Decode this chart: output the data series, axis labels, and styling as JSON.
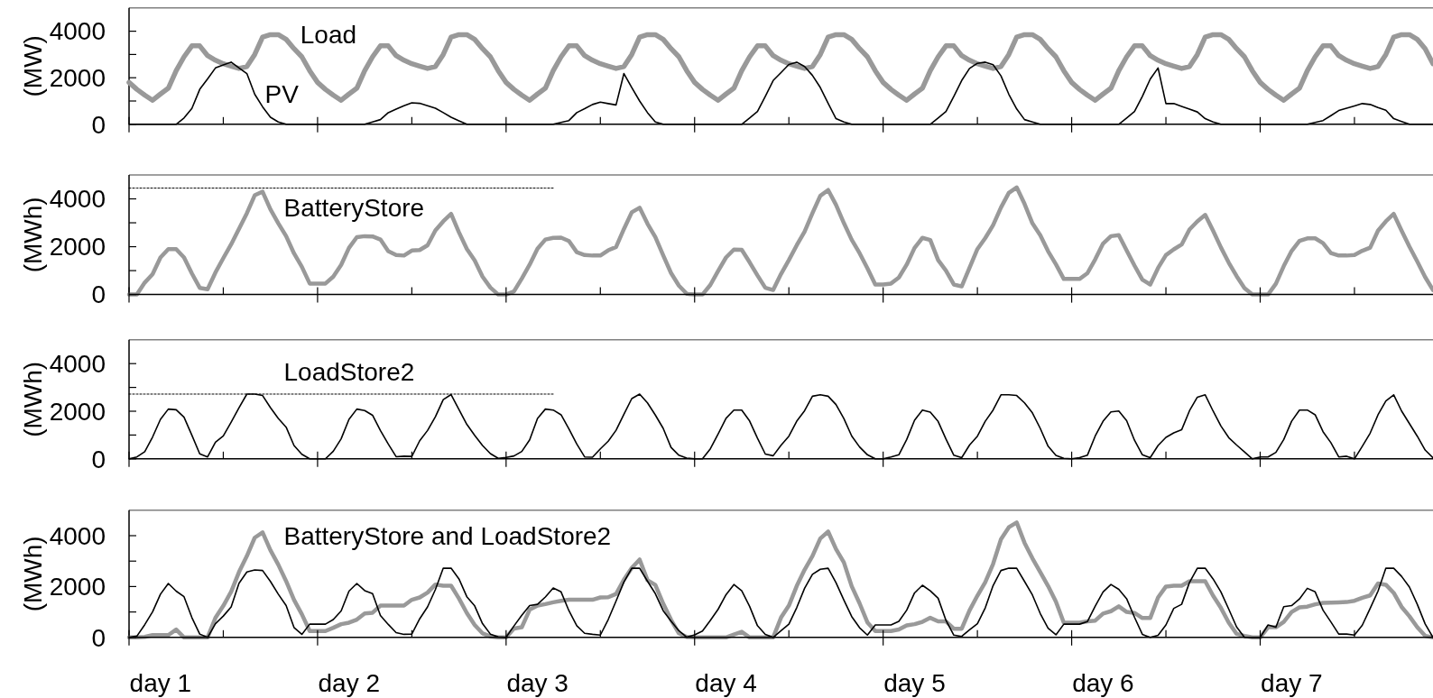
{
  "chart_data": [
    {
      "type": "line",
      "ylabel": "(MW)",
      "ylim": [
        0,
        5000
      ],
      "yticks": [
        0,
        2000,
        4000
      ],
      "categories": [
        null,
        null,
        null,
        null,
        null,
        null,
        null,
        null,
        null,
        null,
        null,
        null,
        null,
        null,
        null,
        null,
        null,
        null,
        null,
        null,
        null,
        null,
        null,
        null,
        null,
        null,
        null,
        null,
        null,
        null,
        null,
        null,
        null,
        null,
        null,
        null,
        null,
        null,
        null,
        null,
        null,
        null,
        null,
        null,
        null,
        null,
        null,
        null,
        null,
        null,
        null,
        null,
        null,
        null,
        null,
        null,
        null,
        null,
        null,
        null,
        null,
        null,
        null,
        null,
        null,
        null,
        null,
        null,
        null,
        null,
        null,
        null,
        null,
        null,
        null,
        null,
        null,
        null,
        null,
        null,
        null,
        null,
        null,
        null,
        null,
        null,
        null,
        null,
        null,
        null,
        null,
        null,
        null,
        null,
        null,
        null,
        null,
        null,
        null,
        null,
        null,
        null,
        null,
        null,
        null,
        null,
        null,
        null,
        null,
        null,
        null,
        null,
        null,
        null,
        null,
        null,
        null,
        null,
        null,
        null,
        null,
        null,
        null,
        null,
        null,
        null,
        null,
        null,
        null,
        null,
        null,
        null,
        null,
        null,
        null,
        null,
        null,
        null,
        null,
        null,
        null,
        null,
        null,
        null,
        null,
        null,
        null,
        null,
        null,
        null,
        null,
        null,
        null,
        null,
        null,
        null,
        null,
        null,
        null,
        null,
        null,
        null,
        null,
        null,
        null,
        null,
        null
      ],
      "series": [
        {
          "name": "Load",
          "color": "#999999",
          "values": [
            1800,
            1500,
            1250,
            1030,
            1300,
            1550,
            2300,
            2900,
            3370,
            3370,
            2950,
            2750,
            2600,
            2500,
            2400,
            2480,
            3000,
            3750,
            3850,
            3850,
            3650,
            3250,
            2900,
            2300,
            1800,
            1500,
            1250,
            1030,
            1300,
            1550,
            2300,
            2900,
            3370,
            3370,
            2950,
            2750,
            2600,
            2500,
            2400,
            2480,
            3000,
            3750,
            3850,
            3850,
            3650,
            3250,
            2900,
            2300,
            1800,
            1500,
            1250,
            1030,
            1300,
            1550,
            2300,
            2900,
            3370,
            3370,
            2950,
            2750,
            2600,
            2500,
            2400,
            2480,
            3000,
            3750,
            3850,
            3850,
            3650,
            3250,
            2900,
            2300,
            1800,
            1500,
            1250,
            1030,
            1300,
            1550,
            2300,
            2900,
            3370,
            3370,
            2950,
            2750,
            2600,
            2500,
            2400,
            2480,
            3000,
            3750,
            3850,
            3850,
            3650,
            3250,
            2900,
            2300,
            1800,
            1500,
            1250,
            1030,
            1300,
            1550,
            2300,
            2900,
            3370,
            3370,
            2950,
            2750,
            2600,
            2500,
            2400,
            2480,
            3000,
            3750,
            3850,
            3850,
            3650,
            3250,
            2900,
            2300,
            1800,
            1500,
            1250,
            1030,
            1300,
            1550,
            2300,
            2900,
            3370,
            3370,
            2950,
            2750,
            2600,
            2500,
            2400,
            2480,
            3000,
            3750,
            3850,
            3850,
            3650,
            3250,
            2900,
            2300,
            1800,
            1500,
            1250,
            1030,
            1300,
            1550,
            2300,
            2900,
            3370,
            3370,
            2950,
            2750,
            2600,
            2500,
            2400,
            2480,
            3000,
            3750,
            3850,
            3850,
            3650,
            3250,
            2600
          ]
        },
        {
          "name": "PV",
          "color": "#000000",
          "values": [
            0,
            0,
            0,
            0,
            0,
            0,
            0,
            270,
            680,
            1500,
            1950,
            2420,
            2550,
            2670,
            2420,
            2180,
            1290,
            750,
            300,
            100,
            0,
            0,
            0,
            0,
            0,
            0,
            0,
            0,
            0,
            0,
            0,
            100,
            200,
            500,
            650,
            800,
            920,
            900,
            800,
            690,
            500,
            300,
            150,
            0,
            0,
            0,
            0,
            0,
            0,
            0,
            0,
            0,
            0,
            0,
            0,
            80,
            160,
            500,
            670,
            850,
            950,
            890,
            830,
            2180,
            1580,
            1000,
            500,
            100,
            0,
            0,
            0,
            0,
            0,
            0,
            0,
            0,
            0,
            0,
            0,
            270,
            550,
            1200,
            1880,
            2220,
            2570,
            2670,
            2480,
            2100,
            1580,
            900,
            240,
            100,
            0,
            0,
            0,
            0,
            0,
            0,
            0,
            0,
            0,
            0,
            0,
            270,
            550,
            1200,
            1880,
            2400,
            2620,
            2670,
            2560,
            2080,
            1290,
            660,
            200,
            100,
            0,
            0,
            0,
            0,
            0,
            0,
            0,
            0,
            0,
            0,
            0,
            270,
            550,
            1200,
            1940,
            2420,
            890,
            890,
            770,
            650,
            530,
            240,
            100,
            0,
            0,
            0,
            0,
            0,
            0,
            0,
            0,
            0,
            0,
            0,
            0,
            80,
            160,
            370,
            590,
            690,
            790,
            890,
            850,
            720,
            600,
            240,
            120,
            0,
            0,
            0,
            0
          ]
        }
      ]
    },
    {
      "type": "line",
      "ylabel": "(MWh)",
      "ylim": [
        0,
        5000
      ],
      "yticks": [
        0,
        2000,
        4000
      ],
      "categories": [
        null,
        null,
        null,
        null,
        null,
        null,
        null,
        null,
        null,
        null,
        null,
        null,
        null,
        null,
        null,
        null,
        null,
        null,
        null,
        null,
        null,
        null,
        null,
        null,
        null,
        null,
        null,
        null,
        null,
        null,
        null,
        null,
        null,
        null,
        null,
        null,
        null,
        null,
        null,
        null,
        null,
        null,
        null,
        null,
        null,
        null,
        null,
        null,
        null,
        null,
        null,
        null,
        null,
        null,
        null,
        null,
        null,
        null,
        null,
        null,
        null,
        null,
        null,
        null,
        null,
        null,
        null,
        null,
        null,
        null,
        null,
        null,
        null,
        null,
        null,
        null,
        null,
        null,
        null,
        null,
        null,
        null,
        null,
        null,
        null,
        null,
        null,
        null,
        null,
        null,
        null,
        null,
        null,
        null,
        null,
        null,
        null,
        null,
        null,
        null,
        null,
        null,
        null,
        null,
        null,
        null,
        null,
        null,
        null,
        null,
        null,
        null,
        null,
        null,
        null,
        null,
        null,
        null,
        null,
        null,
        null,
        null,
        null,
        null,
        null,
        null,
        null,
        null,
        null,
        null,
        null,
        null,
        null,
        null,
        null,
        null,
        null,
        null,
        null,
        null,
        null,
        null,
        null,
        null,
        null,
        null,
        null,
        null,
        null,
        null,
        null,
        null,
        null,
        null,
        null,
        null,
        null,
        null,
        null,
        null,
        null,
        null,
        null,
        null,
        null,
        null,
        null
      ],
      "series": [
        {
          "color": "#000000",
          "line_style": "dotted",
          "values": [
            4450,
            4450,
            4450,
            4450,
            4450,
            4450,
            4450,
            4450,
            4450,
            4450,
            4450,
            4450,
            4450,
            4450,
            4450,
            4450,
            4450,
            4450,
            4450,
            4450,
            4450,
            4450,
            4450,
            4450,
            4450,
            4450,
            4450,
            4450,
            4450,
            4450,
            4450,
            4450,
            4450,
            4450,
            4450,
            4450,
            4450,
            4450,
            4450,
            4450,
            4450,
            4450,
            4450,
            4450,
            4450,
            4450,
            4450,
            4450,
            4450,
            4450,
            4450,
            4450,
            4450,
            4450,
            4450,
            null,
            null,
            null,
            null,
            null,
            null,
            null,
            null,
            null,
            null,
            null,
            null,
            null,
            null,
            null,
            null,
            null,
            null,
            null,
            null,
            null,
            null,
            null,
            null,
            null,
            null,
            null,
            null,
            null,
            null,
            null,
            null,
            null,
            null,
            null,
            null,
            null,
            null,
            null,
            null,
            null,
            null,
            null,
            null,
            null,
            null,
            null,
            null,
            null,
            null,
            null,
            null,
            null,
            null,
            null,
            null,
            null,
            null,
            null,
            null,
            null,
            null,
            null,
            null,
            null,
            null,
            null,
            null,
            null,
            null,
            null,
            null,
            null,
            null,
            null,
            null,
            null,
            null,
            null,
            null,
            null,
            null,
            null,
            null,
            null,
            null,
            null,
            null,
            null,
            null,
            null,
            null,
            null,
            null,
            null,
            null,
            null,
            null,
            null,
            null,
            null,
            null,
            null,
            null,
            null,
            null,
            null,
            null,
            null,
            null,
            null,
            null
          ]
        },
        {
          "name": "BatteryStore",
          "color": "#999999",
          "values": [
            0,
            0,
            500,
            850,
            1550,
            1900,
            1900,
            1550,
            880,
            280,
            220,
            920,
            1520,
            2100,
            2750,
            3400,
            4150,
            4300,
            3560,
            2980,
            2440,
            1720,
            1160,
            460,
            460,
            460,
            750,
            1240,
            1950,
            2400,
            2440,
            2430,
            2300,
            1810,
            1650,
            1630,
            1840,
            1860,
            2060,
            2680,
            3060,
            3370,
            2600,
            1910,
            1430,
            750,
            290,
            0,
            0,
            130,
            670,
            1250,
            1920,
            2300,
            2370,
            2380,
            2240,
            1770,
            1650,
            1630,
            1630,
            1850,
            1990,
            2740,
            3440,
            3630,
            2960,
            2400,
            1640,
            900,
            370,
            30,
            0,
            0,
            400,
            990,
            1550,
            1880,
            1870,
            1350,
            800,
            280,
            190,
            860,
            1440,
            2060,
            2630,
            3400,
            4130,
            4370,
            3750,
            2990,
            2290,
            1730,
            1100,
            420,
            420,
            460,
            710,
            1250,
            1950,
            2370,
            2280,
            1440,
            1000,
            420,
            340,
            1120,
            1900,
            2360,
            2900,
            3640,
            4250,
            4480,
            3790,
            2980,
            2480,
            1810,
            1260,
            650,
            650,
            650,
            890,
            1470,
            2130,
            2440,
            2480,
            1840,
            1210,
            620,
            420,
            1110,
            1650,
            1890,
            2090,
            2720,
            3060,
            3330,
            2670,
            1970,
            1330,
            770,
            270,
            0,
            0,
            0,
            450,
            1190,
            1820,
            2240,
            2350,
            2350,
            2150,
            1730,
            1630,
            1630,
            1650,
            1830,
            1960,
            2670,
            3060,
            3370,
            2670,
            2000,
            1380,
            730,
            190
          ]
        }
      ]
    },
    {
      "type": "line",
      "ylabel": "(MWh)",
      "ylim": [
        0,
        5000
      ],
      "yticks": [
        0,
        2000,
        4000
      ],
      "categories": [
        null,
        null,
        null,
        null,
        null,
        null,
        null,
        null,
        null,
        null,
        null,
        null,
        null,
        null,
        null,
        null,
        null,
        null,
        null,
        null,
        null,
        null,
        null,
        null,
        null,
        null,
        null,
        null,
        null,
        null,
        null,
        null,
        null,
        null,
        null,
        null,
        null,
        null,
        null,
        null,
        null,
        null,
        null,
        null,
        null,
        null,
        null,
        null,
        null,
        null,
        null,
        null,
        null,
        null,
        null,
        null,
        null,
        null,
        null,
        null,
        null,
        null,
        null,
        null,
        null,
        null,
        null,
        null,
        null,
        null,
        null,
        null,
        null,
        null,
        null,
        null,
        null,
        null,
        null,
        null,
        null,
        null,
        null,
        null,
        null,
        null,
        null,
        null,
        null,
        null,
        null,
        null,
        null,
        null,
        null,
        null,
        null,
        null,
        null,
        null,
        null,
        null,
        null,
        null,
        null,
        null,
        null,
        null,
        null,
        null,
        null,
        null,
        null,
        null,
        null,
        null,
        null,
        null,
        null,
        null,
        null,
        null,
        null,
        null,
        null,
        null,
        null,
        null,
        null,
        null,
        null,
        null,
        null,
        null,
        null,
        null,
        null,
        null,
        null,
        null,
        null,
        null,
        null,
        null,
        null,
        null,
        null,
        null,
        null,
        null,
        null,
        null,
        null,
        null,
        null,
        null,
        null,
        null,
        null,
        null,
        null,
        null,
        null,
        null,
        null,
        null,
        null
      ],
      "series": [
        {
          "color": "#000000",
          "line_style": "dotted",
          "values": [
            2720,
            2720,
            2720,
            2720,
            2720,
            2720,
            2720,
            2720,
            2720,
            2720,
            2720,
            2720,
            2720,
            2720,
            2720,
            2720,
            2720,
            2720,
            2720,
            2720,
            2720,
            2720,
            2720,
            2720,
            2720,
            2720,
            2720,
            2720,
            2720,
            2720,
            2720,
            2720,
            2720,
            2720,
            2720,
            2720,
            2720,
            2720,
            2720,
            2720,
            2720,
            2720,
            2720,
            2720,
            2720,
            2720,
            2720,
            2720,
            2720,
            2720,
            2720,
            2720,
            2720,
            2720,
            2720,
            null,
            null,
            null,
            null,
            null,
            null,
            null,
            null,
            null,
            null,
            null,
            null,
            null,
            null,
            null,
            null,
            null,
            null,
            null,
            null,
            null,
            null,
            null,
            null,
            null,
            null,
            null,
            null,
            null,
            null,
            null,
            null,
            null,
            null,
            null,
            null,
            null,
            null,
            null,
            null,
            null,
            null,
            null,
            null,
            null,
            null,
            null,
            null,
            null,
            null,
            null,
            null,
            null,
            null,
            null,
            null,
            null,
            null,
            null,
            null,
            null,
            null,
            null,
            null,
            null,
            null,
            null,
            null,
            null,
            null,
            null,
            null,
            null,
            null,
            null,
            null,
            null,
            null,
            null,
            null,
            null,
            null,
            null,
            null,
            null,
            null,
            null,
            null,
            null,
            null,
            null,
            null,
            null,
            null,
            null,
            null,
            null,
            null,
            null,
            null,
            null,
            null,
            null,
            null,
            null,
            null,
            null,
            null,
            null,
            null,
            null,
            null
          ]
        },
        {
          "name": "LoadStore2",
          "color": "#000000",
          "values": [
            0,
            80,
            300,
            920,
            1660,
            2090,
            2060,
            1750,
            990,
            210,
            80,
            700,
            960,
            1540,
            2150,
            2720,
            2720,
            2660,
            2150,
            1700,
            1330,
            560,
            190,
            0,
            0,
            0,
            320,
            840,
            1660,
            2090,
            2030,
            1830,
            1190,
            620,
            90,
            110,
            100,
            760,
            1190,
            1770,
            2490,
            2700,
            2070,
            1450,
            990,
            560,
            220,
            20,
            60,
            120,
            310,
            800,
            1700,
            2090,
            2050,
            1850,
            1260,
            620,
            80,
            70,
            420,
            740,
            1200,
            1870,
            2530,
            2720,
            2350,
            1840,
            1280,
            480,
            150,
            30,
            0,
            0,
            420,
            1050,
            1700,
            2050,
            2050,
            1590,
            870,
            200,
            130,
            570,
            950,
            1580,
            2020,
            2630,
            2690,
            2630,
            2280,
            1690,
            960,
            500,
            170,
            0,
            0,
            80,
            170,
            810,
            1620,
            2050,
            1960,
            1570,
            830,
            150,
            50,
            580,
            950,
            1580,
            2050,
            2690,
            2690,
            2660,
            2350,
            1930,
            1280,
            530,
            140,
            20,
            0,
            50,
            150,
            960,
            1580,
            1970,
            2010,
            1600,
            780,
            170,
            50,
            560,
            900,
            1090,
            1220,
            2020,
            2590,
            2690,
            2010,
            1380,
            890,
            580,
            290,
            0,
            80,
            80,
            270,
            810,
            1580,
            2050,
            2050,
            1850,
            1140,
            680,
            80,
            110,
            0,
            530,
            1080,
            1850,
            2430,
            2690,
            2010,
            1480,
            950,
            370,
            40
          ]
        }
      ]
    },
    {
      "type": "line",
      "title": "BatteryStore and LoadStore2",
      "ylabel": "(MWh)",
      "ylim": [
        0,
        5000
      ],
      "yticks": [
        0,
        2000,
        4000
      ],
      "categories": [
        null,
        null,
        null,
        null,
        "day 1",
        null,
        null,
        null,
        null,
        null,
        null,
        null,
        null,
        null,
        null,
        null,
        null,
        null,
        null,
        null,
        null,
        null,
        null,
        null,
        null,
        null,
        null,
        null,
        "day 2",
        null,
        null,
        null,
        null,
        null,
        null,
        null,
        null,
        null,
        null,
        null,
        null,
        null,
        null,
        null,
        null,
        null,
        null,
        null,
        null,
        null,
        null,
        null,
        "day 3",
        null,
        null,
        null,
        null,
        null,
        null,
        null,
        null,
        null,
        null,
        null,
        null,
        null,
        null,
        null,
        null,
        null,
        null,
        null,
        null,
        null,
        null,
        null,
        "day 4",
        null,
        null,
        null,
        null,
        null,
        null,
        null,
        null,
        null,
        null,
        null,
        null,
        null,
        null,
        null,
        null,
        null,
        null,
        null,
        null,
        null,
        null,
        null,
        "day 5",
        null,
        null,
        null,
        null,
        null,
        null,
        null,
        null,
        null,
        null,
        null,
        null,
        null,
        null,
        null,
        null,
        null,
        null,
        null,
        null,
        null,
        null,
        null,
        "day 6",
        null,
        null,
        null,
        null,
        null,
        null,
        null,
        null,
        null,
        null,
        null,
        null,
        null,
        null,
        null,
        null,
        null,
        null,
        null,
        null,
        null,
        null,
        null,
        "day 7",
        null,
        null,
        null,
        null,
        null,
        null,
        null,
        null,
        null,
        null,
        null,
        null,
        null,
        null,
        null,
        null,
        null,
        null
      ],
      "series": [
        {
          "color": "#999999",
          "values": [
            0,
            0,
            20,
            90,
            90,
            90,
            310,
            0,
            0,
            0,
            0,
            770,
            1240,
            1800,
            2570,
            3200,
            3920,
            4130,
            3430,
            2860,
            2210,
            1480,
            910,
            250,
            250,
            250,
            380,
            520,
            580,
            700,
            940,
            970,
            1250,
            1250,
            1250,
            1250,
            1480,
            1570,
            1760,
            2080,
            2030,
            2030,
            1530,
            960,
            490,
            160,
            40,
            0,
            0,
            350,
            400,
            1090,
            1250,
            1310,
            1380,
            1440,
            1480,
            1480,
            1480,
            1480,
            1570,
            1580,
            1710,
            2270,
            2730,
            3060,
            2250,
            2060,
            1330,
            690,
            160,
            20,
            0,
            0,
            0,
            0,
            0,
            110,
            220,
            0,
            0,
            0,
            0,
            780,
            1250,
            2020,
            2660,
            3200,
            3890,
            4160,
            3470,
            2950,
            2010,
            1340,
            590,
            250,
            250,
            250,
            310,
            470,
            520,
            610,
            770,
            630,
            630,
            340,
            340,
            1060,
            1640,
            2170,
            2890,
            3860,
            4330,
            4520,
            3720,
            3110,
            2570,
            2020,
            1400,
            580,
            580,
            580,
            630,
            660,
            940,
            1030,
            1220,
            1000,
            960,
            760,
            760,
            1570,
            2000,
            2030,
            2030,
            2210,
            2210,
            2210,
            1640,
            1160,
            580,
            140,
            60,
            0,
            0,
            400,
            400,
            610,
            1000,
            1180,
            1210,
            1300,
            1360,
            1370,
            1380,
            1390,
            1440,
            1560,
            1650,
            2120,
            2070,
            1750,
            1200,
            830,
            400,
            60,
            0
          ]
        },
        {
          "color": "#000000",
          "values": [
            0,
            50,
            500,
            1010,
            1700,
            2120,
            1820,
            1600,
            780,
            130,
            0,
            540,
            840,
            1200,
            2130,
            2570,
            2650,
            2630,
            2200,
            1700,
            1250,
            390,
            120,
            520,
            520,
            520,
            700,
            1040,
            1820,
            2120,
            1840,
            1720,
            860,
            510,
            190,
            120,
            130,
            730,
            1200,
            1880,
            2720,
            2720,
            2300,
            1600,
            1240,
            540,
            130,
            20,
            0,
            450,
            870,
            1250,
            1300,
            1590,
            1940,
            1790,
            1050,
            460,
            160,
            120,
            90,
            700,
            1430,
            2180,
            2720,
            2720,
            2210,
            1720,
            1050,
            640,
            260,
            10,
            100,
            250,
            670,
            1110,
            1680,
            2080,
            1830,
            1220,
            460,
            120,
            0,
            260,
            520,
            1170,
            1930,
            2480,
            2680,
            2720,
            2150,
            1470,
            820,
            380,
            90,
            490,
            490,
            490,
            630,
            1070,
            1750,
            2050,
            1830,
            1540,
            670,
            90,
            40,
            300,
            540,
            1160,
            2040,
            2630,
            2720,
            2720,
            2200,
            1670,
            940,
            360,
            100,
            520,
            520,
            520,
            620,
            1230,
            1790,
            2080,
            1890,
            1520,
            790,
            120,
            0,
            80,
            490,
            1140,
            1300,
            2160,
            2720,
            2720,
            2300,
            1790,
            1110,
            410,
            0,
            0,
            0,
            490,
            400,
            1210,
            1250,
            1510,
            1930,
            1790,
            1070,
            610,
            130,
            130,
            90,
            480,
            1140,
            1820,
            2720,
            2720,
            2400,
            1980,
            1300,
            530,
            0
          ]
        }
      ]
    }
  ]
}
